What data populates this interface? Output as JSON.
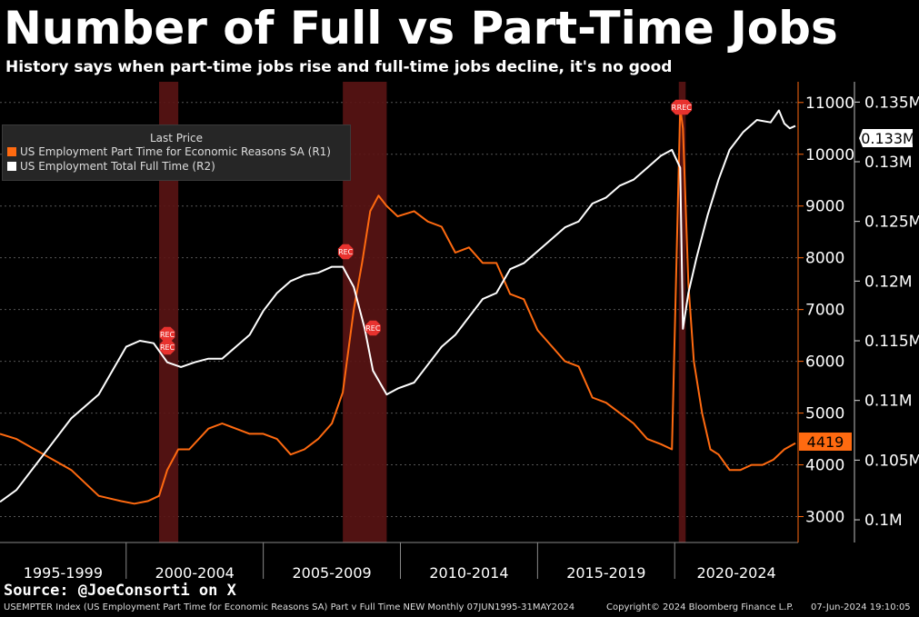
{
  "header": {
    "title": "Number of Full vs Part-Time Jobs",
    "subtitle": "History says when part-time jobs rise and full-time jobs decline, it's no good"
  },
  "legend": {
    "heading": "Last Price",
    "items": [
      {
        "label": "US Employment Part Time for Economic Reasons SA  (R1)",
        "color": "#ff6a10"
      },
      {
        "label": "US Employment Total Full Time  (R2)",
        "color": "#ffffff"
      }
    ]
  },
  "recession_label": "REC",
  "source": "Source: @JoeConsorti on X",
  "footer": {
    "left": "USEMPTER Index (US Employment Part Time for Economic Reasons SA) Part v Full Time NEW  Monthly 07JUN1995-31MAY2024",
    "center": "Copyright© 2024 Bloomberg Finance L.P.",
    "right": "07-Jun-2024 19:10:05"
  },
  "colors": {
    "part_time": "#ff6a10",
    "full_time": "#ffffff",
    "recession": "#5a1414",
    "rec_marker": "#e8322e",
    "grid": "#555555"
  },
  "chart_data": {
    "type": "line",
    "x_tick_labels": [
      "1995-1999",
      "2000-2004",
      "2005-2009",
      "2010-2014",
      "2015-2019",
      "2020-2024"
    ],
    "xlim": [
      1995.4,
      2024.5
    ],
    "axis_R1": {
      "ticks": [
        3000,
        4000,
        5000,
        6000,
        7000,
        8000,
        9000,
        10000,
        11000
      ],
      "ylim": [
        2500,
        11400
      ]
    },
    "axis_R2": {
      "ticks": [
        "0.1M",
        "0.105M",
        "0.11M",
        "0.115M",
        "0.12M",
        "0.125M",
        "0.13M",
        "0.135M"
      ],
      "tick_values": [
        0.1,
        0.105,
        0.11,
        0.115,
        0.12,
        0.125,
        0.13,
        0.135
      ],
      "ylim": [
        0.0981,
        0.1367
      ]
    },
    "recessions": [
      [
        2001.2,
        2001.9
      ],
      [
        2007.9,
        2009.5
      ],
      [
        2020.15,
        2020.4
      ]
    ],
    "last_values": {
      "part_time": "4419",
      "full_time": "0.133M"
    },
    "series": [
      {
        "name": "US Employment Part Time for Economic Reasons SA  (R1)",
        "axis": "R1",
        "x": [
          1995.4,
          1996.0,
          1997.0,
          1998.0,
          1999.0,
          1999.8,
          2000.3,
          2000.8,
          2001.2,
          2001.5,
          2001.9,
          2002.3,
          2003.0,
          2003.5,
          2004.0,
          2004.5,
          2005.0,
          2005.5,
          2006.0,
          2006.5,
          2007.0,
          2007.5,
          2007.9,
          2008.3,
          2008.6,
          2008.9,
          2009.2,
          2009.5,
          2009.9,
          2010.5,
          2011.0,
          2011.5,
          2012.0,
          2012.5,
          2013.0,
          2013.5,
          2014.0,
          2014.5,
          2015.0,
          2015.5,
          2016.0,
          2016.5,
          2017.0,
          2017.5,
          2018.0,
          2018.5,
          2019.0,
          2019.5,
          2019.9,
          2020.2,
          2020.3,
          2020.5,
          2020.7,
          2021.0,
          2021.3,
          2021.6,
          2022.0,
          2022.4,
          2022.8,
          2023.2,
          2023.6,
          2024.0,
          2024.4
        ],
        "values": [
          4600,
          4500,
          4200,
          3900,
          3400,
          3300,
          3250,
          3300,
          3400,
          3900,
          4300,
          4300,
          4700,
          4800,
          4700,
          4600,
          4600,
          4500,
          4200,
          4300,
          4500,
          4800,
          5400,
          7000,
          7900,
          8900,
          9200,
          9000,
          8800,
          8900,
          8700,
          8600,
          8100,
          8200,
          7900,
          7900,
          7300,
          7200,
          6600,
          6300,
          6000,
          5900,
          5300,
          5200,
          5000,
          4800,
          4500,
          4400,
          4300,
          10900,
          10500,
          7500,
          6000,
          5000,
          4300,
          4200,
          3900,
          3900,
          4000,
          4000,
          4100,
          4300,
          4419
        ]
      },
      {
        "name": "US Employment Total Full Time  (R2)",
        "axis": "R2",
        "x": [
          1995.4,
          1996.0,
          1997.0,
          1998.0,
          1999.0,
          2000.0,
          2000.5,
          2001.0,
          2001.5,
          2002.0,
          2002.5,
          2003.0,
          2003.5,
          2004.0,
          2004.5,
          2005.0,
          2005.5,
          2006.0,
          2006.5,
          2007.0,
          2007.5,
          2007.9,
          2008.3,
          2008.7,
          2009.0,
          2009.5,
          2009.9,
          2010.5,
          2011.0,
          2011.5,
          2012.0,
          2012.5,
          2013.0,
          2013.5,
          2014.0,
          2014.5,
          2015.0,
          2015.5,
          2016.0,
          2016.5,
          2017.0,
          2017.5,
          2018.0,
          2018.5,
          2019.0,
          2019.5,
          2019.9,
          2020.2,
          2020.3,
          2020.5,
          2020.8,
          2021.2,
          2021.6,
          2022.0,
          2022.5,
          2023.0,
          2023.5,
          2023.8,
          2024.0,
          2024.2,
          2024.4
        ],
        "values": [
          0.1015,
          0.1025,
          0.1055,
          0.1085,
          0.1105,
          0.1145,
          0.115,
          0.1148,
          0.1132,
          0.1128,
          0.1132,
          0.1135,
          0.1135,
          0.1145,
          0.1155,
          0.1175,
          0.119,
          0.12,
          0.1205,
          0.1207,
          0.1212,
          0.1212,
          0.1195,
          0.116,
          0.1125,
          0.1105,
          0.111,
          0.1115,
          0.113,
          0.1145,
          0.1155,
          0.117,
          0.1185,
          0.119,
          0.121,
          0.1215,
          0.1225,
          0.1235,
          0.1245,
          0.125,
          0.1265,
          0.127,
          0.128,
          0.1285,
          0.1295,
          0.1305,
          0.131,
          0.1295,
          0.116,
          0.119,
          0.122,
          0.1255,
          0.1285,
          0.131,
          0.1325,
          0.1335,
          0.1333,
          0.1343,
          0.1332,
          0.1328,
          0.133
        ]
      }
    ]
  }
}
